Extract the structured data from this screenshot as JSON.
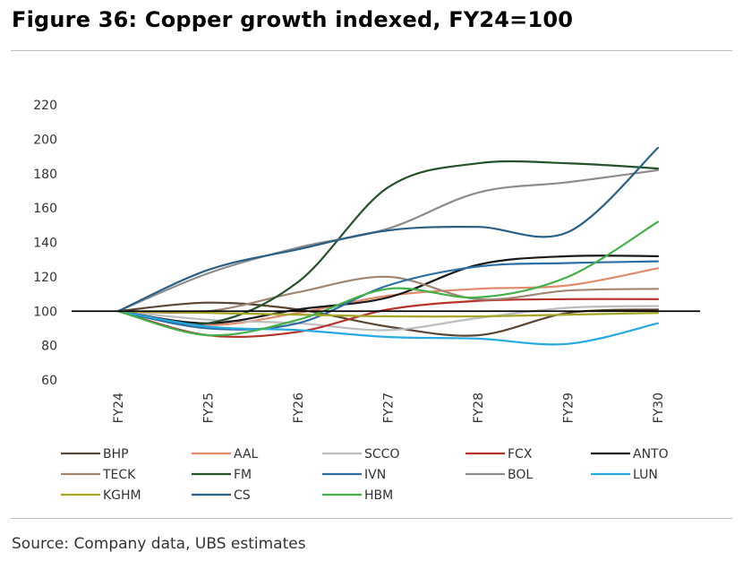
{
  "title": "Figure 36: Copper growth indexed, FY24=100",
  "source": "Source: Company data, UBS estimates",
  "chart_data": {
    "type": "line",
    "title": "Figure 36: Copper growth indexed, FY24=100",
    "xlabel": "",
    "ylabel": "",
    "categories": [
      "FY24",
      "FY25",
      "FY26",
      "FY27",
      "FY28",
      "FY29",
      "FY30"
    ],
    "ylim": [
      60,
      220
    ],
    "yticks": [
      60,
      80,
      100,
      120,
      140,
      160,
      180,
      200,
      220
    ],
    "reference_line": 100,
    "grid": false,
    "legend_position": "bottom",
    "series": [
      {
        "name": "BHP",
        "color": "#5b4636",
        "values": [
          100,
          105,
          101,
          91,
          86,
          99,
          101
        ]
      },
      {
        "name": "AAL",
        "color": "#e08a6c",
        "values": [
          100,
          92,
          99,
          109,
          113,
          115,
          125
        ]
      },
      {
        "name": "SCCO",
        "color": "#bdbdbd",
        "values": [
          100,
          95,
          93,
          89,
          96,
          102,
          103
        ]
      },
      {
        "name": "FCX",
        "color": "#b5332b",
        "values": [
          100,
          86,
          88,
          101,
          106,
          107,
          107
        ]
      },
      {
        "name": "ANTO",
        "color": "#1a1a1a",
        "values": [
          100,
          93,
          101,
          108,
          127,
          132,
          132
        ]
      },
      {
        "name": "TECK",
        "color": "#a08573",
        "values": [
          100,
          100,
          111,
          120,
          107,
          112,
          113
        ]
      },
      {
        "name": "FM",
        "color": "#25512b",
        "values": [
          100,
          93,
          117,
          172,
          186,
          186,
          183
        ]
      },
      {
        "name": "IVN",
        "color": "#2e6fa3",
        "values": [
          100,
          90,
          93,
          115,
          126,
          128,
          129
        ]
      },
      {
        "name": "BOL",
        "color": "#8c8c8c",
        "values": [
          100,
          122,
          137,
          148,
          169,
          175,
          182
        ]
      },
      {
        "name": "LUN",
        "color": "#27a9e1",
        "values": [
          100,
          91,
          89,
          85,
          84,
          81,
          93
        ]
      },
      {
        "name": "KGHM",
        "color": "#a5a526",
        "values": [
          100,
          99,
          98,
          97,
          97,
          98,
          99
        ]
      },
      {
        "name": "CS",
        "color": "#2a5f86",
        "values": [
          100,
          124,
          136,
          147,
          149,
          146,
          195
        ]
      },
      {
        "name": "HBM",
        "color": "#43b049",
        "values": [
          100,
          86,
          95,
          113,
          108,
          120,
          152
        ]
      }
    ]
  }
}
